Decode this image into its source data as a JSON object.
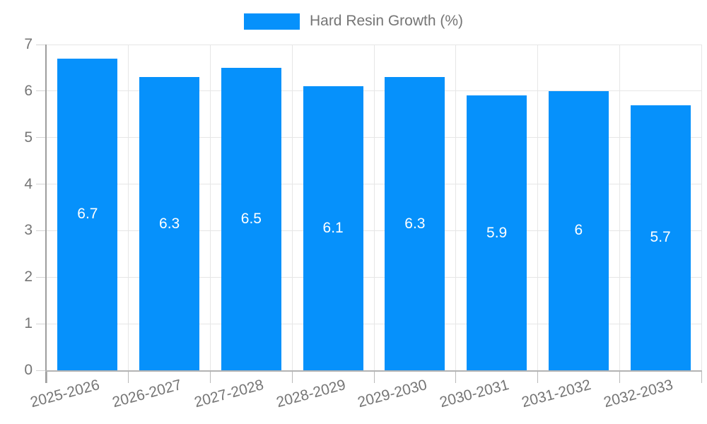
{
  "legend": {
    "label": "Hard Resin Growth (%)"
  },
  "chart_data": {
    "type": "bar",
    "title": "Hard Resin Growth (%)",
    "categories": [
      "2025-2026",
      "2026-2027",
      "2027-2028",
      "2028-2029",
      "2029-2030",
      "2030-2031",
      "2031-2032",
      "2032-2033"
    ],
    "values": [
      6.7,
      6.3,
      6.5,
      6.1,
      6.3,
      5.9,
      6,
      5.7
    ],
    "series": [
      {
        "name": "Hard Resin Growth (%)",
        "values": [
          6.7,
          6.3,
          6.5,
          6.1,
          6.3,
          5.9,
          6,
          5.7
        ]
      }
    ],
    "xlabel": "",
    "ylabel": "",
    "ylim": [
      0,
      7
    ],
    "yticks": [
      0,
      1,
      2,
      3,
      4,
      5,
      6,
      7
    ],
    "grid": true,
    "legend_position": "top",
    "value_labels_shown": true,
    "colors": {
      "bar": "#0691fb",
      "bar_value_text": "#ffffff",
      "axis_text": "#757575",
      "gridline": "#e6e6e6",
      "y_axis_line": "#9e9e9e",
      "x_axis_line": "#b3b3b3",
      "y_tick": "#d4d4d4",
      "x_tick": "#b9b9b9"
    }
  }
}
